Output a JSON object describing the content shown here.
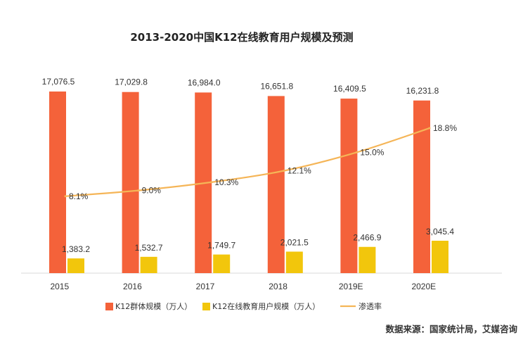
{
  "chart_data": {
    "type": "bar",
    "title": "2013-2020中国K12在线教育用户规模及预测",
    "categories": [
      "2015",
      "2016",
      "2017",
      "2018",
      "2019E",
      "2020E"
    ],
    "series": [
      {
        "name": "K12群体规模（万人）",
        "kind": "bar",
        "color": "#F4623A",
        "values": [
          17076.5,
          17029.8,
          16984.0,
          16651.8,
          16409.5,
          16231.8
        ],
        "labels": [
          "17,076.5",
          "17,029.8",
          "16,984.0",
          "16,651.8",
          "16,409.5",
          "16,231.8"
        ]
      },
      {
        "name": "K12在线教育用户规模（万人）",
        "kind": "bar",
        "color": "#F2C60C",
        "values": [
          1383.2,
          1532.7,
          1749.7,
          2021.5,
          2466.9,
          3045.4
        ],
        "labels": [
          "1,383.2",
          "1,532.7",
          "1,749.7",
          "2,021.5",
          "2,466.9",
          "3,045.4"
        ]
      },
      {
        "name": "渗透率",
        "kind": "line",
        "color": "#F5B557",
        "values": [
          8.1,
          9.0,
          10.3,
          12.1,
          15.0,
          18.8
        ],
        "labels": [
          "8.1%",
          "9.0%",
          "10.3%",
          "12.1%",
          "15.0%",
          "18.8%"
        ]
      }
    ],
    "legend_position": "bottom",
    "grid": false
  },
  "source": "数据来源：国家统计局，艾媒咨询"
}
